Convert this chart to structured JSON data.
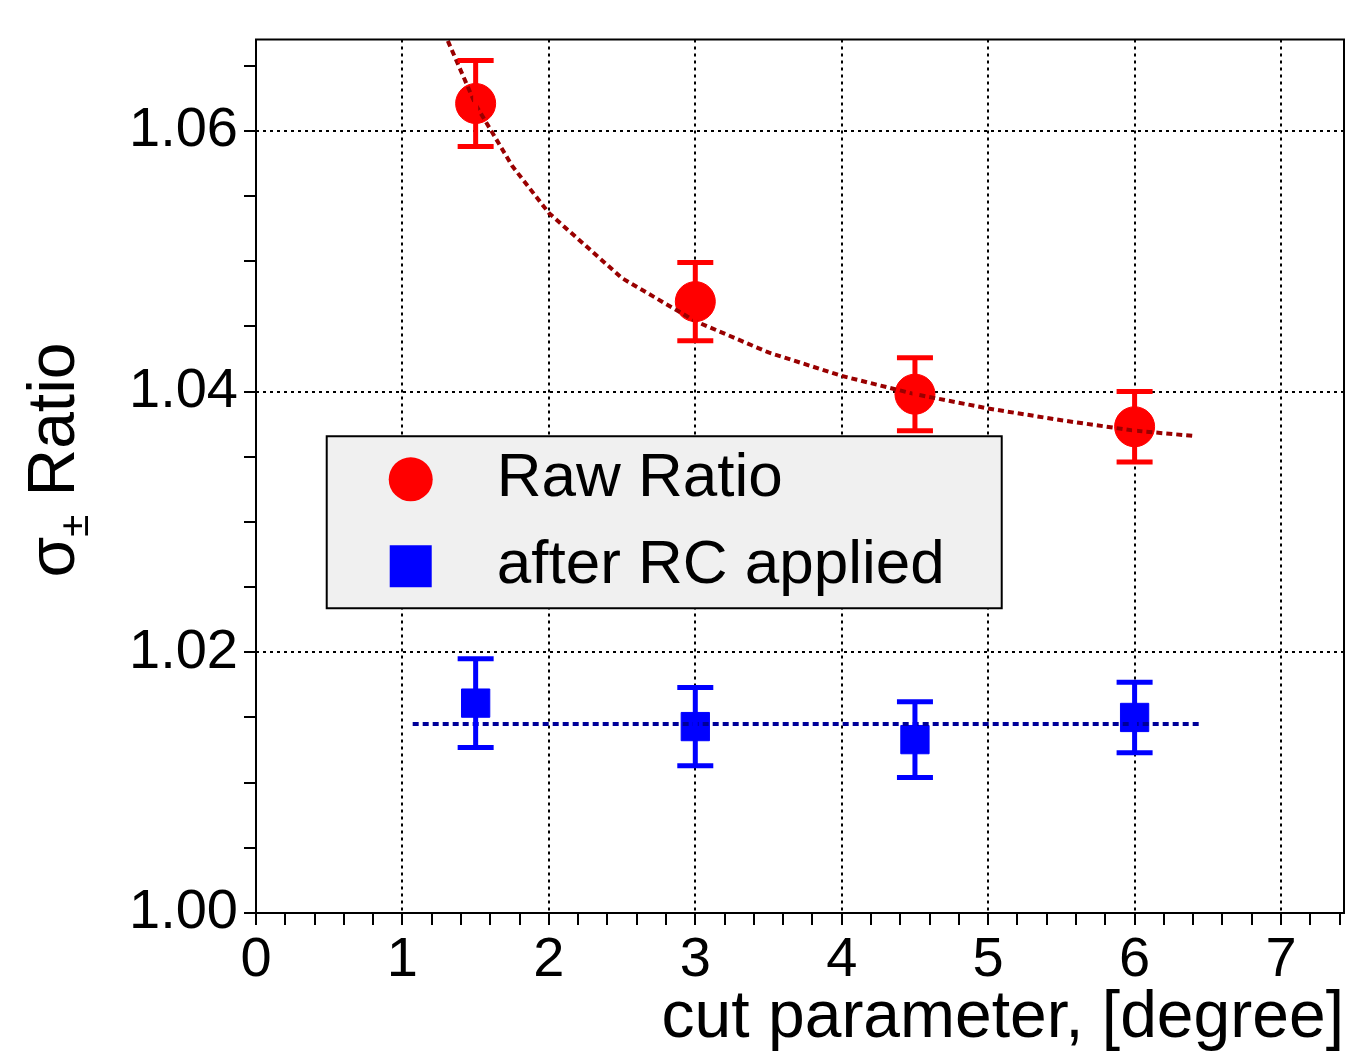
{
  "chart_data": {
    "type": "scatter",
    "xlabel": "cut parameter, [degree]",
    "ylabel": "σ$_{±}$ Ratio",
    "xlim": [
      0,
      7.43
    ],
    "ylim": [
      1.0,
      1.067
    ],
    "xticks": [
      0,
      {
        "value": 0.2,
        "label": null
      },
      {
        "value": 0.4,
        "label": null
      },
      {
        "value": 0.6,
        "label": null
      },
      {
        "value": 0.8,
        "label": null
      },
      1,
      {
        "value": 1.2,
        "label": null
      },
      {
        "value": 1.4,
        "label": null
      },
      {
        "value": 1.6,
        "label": null
      },
      {
        "value": 1.8,
        "label": null
      },
      2,
      {
        "value": 2.2,
        "label": null
      },
      {
        "value": 2.4,
        "label": null
      },
      {
        "value": 2.6,
        "label": null
      },
      {
        "value": 2.8,
        "label": null
      },
      3,
      {
        "value": 3.2,
        "label": null
      },
      {
        "value": 3.4,
        "label": null
      },
      {
        "value": 3.6,
        "label": null
      },
      {
        "value": 3.8,
        "label": null
      },
      4,
      {
        "value": 4.2,
        "label": null
      },
      {
        "value": 4.4,
        "label": null
      },
      {
        "value": 4.6,
        "label": null
      },
      {
        "value": 4.8,
        "label": null
      },
      5,
      {
        "value": 5.2,
        "label": null
      },
      {
        "value": 5.4,
        "label": null
      },
      {
        "value": 5.6,
        "label": null
      },
      {
        "value": 5.8,
        "label": null
      },
      6,
      {
        "value": 6.2,
        "label": null
      },
      {
        "value": 6.4,
        "label": null
      },
      {
        "value": 6.6,
        "label": null
      },
      {
        "value": 6.8,
        "label": null
      },
      7,
      {
        "value": 7.2,
        "label": null
      },
      {
        "value": 7.4,
        "label": null
      }
    ],
    "yticks": [
      {
        "value": 1.0,
        "label": "1.00"
      },
      {
        "value": 1.005,
        "label": null
      },
      {
        "value": 1.01,
        "label": null
      },
      {
        "value": 1.015,
        "label": null
      },
      {
        "value": 1.02,
        "label": "1.02"
      },
      {
        "value": 1.025,
        "label": null
      },
      {
        "value": 1.03,
        "label": null
      },
      {
        "value": 1.035,
        "label": null
      },
      {
        "value": 1.04,
        "label": "1.04"
      },
      {
        "value": 1.045,
        "label": null
      },
      {
        "value": 1.05,
        "label": null
      },
      {
        "value": 1.055,
        "label": null
      },
      {
        "value": 1.06,
        "label": "1.06"
      },
      {
        "value": 1.065,
        "label": null
      }
    ],
    "grid": true,
    "legend": "left",
    "series": [
      {
        "name": "Raw Ratio",
        "color": "#ff0000",
        "marker": "circle",
        "x": [
          1.5,
          3,
          4.5,
          6
        ],
        "values": [
          1.0621,
          1.0469,
          1.0398,
          1.0373
        ],
        "errors": [
          0.0033,
          0.003,
          0.0028,
          0.0027
        ]
      },
      {
        "name": "after RC applied",
        "color": "#0000ff",
        "marker": "square",
        "x": [
          1.5,
          3,
          4.5,
          6
        ],
        "values": [
          1.0161,
          1.0143,
          1.0133,
          1.015
        ],
        "errors": [
          0.0034,
          0.003,
          0.0029,
          0.0027
        ]
      },
      {
        "type": "line",
        "color": "#990000",
        "marker": "none",
        "line_style": "dashed",
        "x": [
          1.31,
          1.5,
          1.75,
          2,
          2.5,
          3,
          3.5,
          4,
          4.5,
          5,
          5.5,
          6,
          6.4
        ],
        "values": [
          1.0669,
          1.062,
          1.0573,
          1.0537,
          1.0487,
          1.0454,
          1.043,
          1.0412,
          1.0398,
          1.0387,
          1.0378,
          1.037,
          1.0366
        ]
      },
      {
        "type": "line",
        "color": "#000099",
        "marker": "none",
        "line_style": "dashed",
        "x": [
          1.07,
          6.45
        ],
        "values": [
          1.0145,
          1.0145
        ]
      }
    ]
  }
}
